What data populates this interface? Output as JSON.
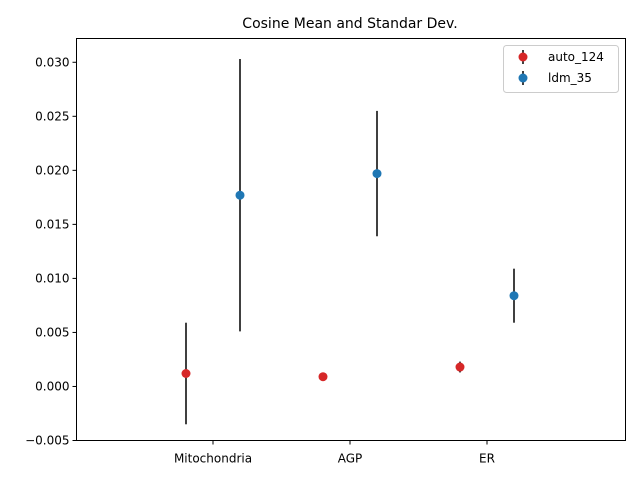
{
  "chart_data": {
    "type": "scatter",
    "title": "Cosine Mean and Standar Dev.",
    "xlabel": "",
    "ylabel": "",
    "categories": [
      "Mitochondria",
      "AGP",
      "ER"
    ],
    "ylim": [
      -0.005,
      0.0322
    ],
    "yticks": [
      -0.005,
      0.0,
      0.005,
      0.01,
      0.015,
      0.02,
      0.025,
      0.03
    ],
    "ytick_labels": [
      "−0.005",
      "0.000",
      "0.005",
      "0.010",
      "0.015",
      "0.020",
      "0.025",
      "0.030"
    ],
    "grid": false,
    "legend_position": "top-right",
    "series": [
      {
        "name": "auto_124",
        "color": "#d62728",
        "values": [
          0.0012,
          0.0009,
          0.0018
        ],
        "errors": [
          0.0047,
          0.0001,
          0.0005
        ]
      },
      {
        "name": "ldm_35",
        "color": "#1f77b4",
        "values": [
          0.0177,
          0.0197,
          0.0084
        ],
        "errors": [
          0.0126,
          0.0058,
          0.0025
        ]
      }
    ]
  }
}
